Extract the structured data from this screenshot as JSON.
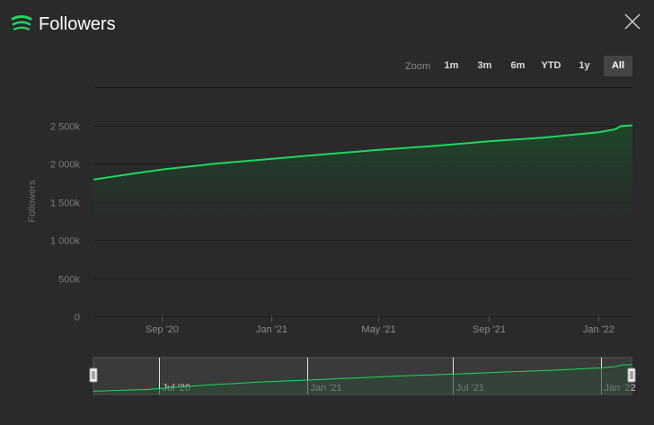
{
  "header": {
    "title": "Followers"
  },
  "zoom": {
    "label": "Zoom",
    "buttons": [
      "1m",
      "3m",
      "6m",
      "YTD",
      "1y",
      "All"
    ],
    "active": "All"
  },
  "colors": {
    "accent": "#1ed760",
    "background": "#2a2a2a",
    "area_top": "#1d4a2a"
  },
  "chart_data": {
    "type": "area",
    "ylabel": "Followers",
    "ylim": [
      0,
      3000000
    ],
    "ytick_values": [
      0,
      500000,
      1000000,
      1500000,
      2000000,
      2500000
    ],
    "ytick_labels": [
      "0",
      "500k",
      "1 000k",
      "1 500k",
      "2 000k",
      "2 500k"
    ],
    "xlim": [
      "2020-06-17",
      "2022-02-08"
    ],
    "xticks": [
      {
        "date": "2020-09-01",
        "label": "Sep '20"
      },
      {
        "date": "2021-01-01",
        "label": "Jan '21"
      },
      {
        "date": "2021-05-01",
        "label": "May '21"
      },
      {
        "date": "2021-09-01",
        "label": "Sep '21"
      },
      {
        "date": "2022-01-01",
        "label": "Jan '22"
      }
    ],
    "grid": true,
    "series": [
      {
        "x": [
          "2020-06-17",
          "2020-08-01",
          "2020-09-01",
          "2020-11-01",
          "2021-01-01",
          "2021-03-01",
          "2021-05-01",
          "2021-07-01",
          "2021-09-01",
          "2021-11-01",
          "2022-01-01",
          "2022-01-20",
          "2022-01-26",
          "2022-02-08"
        ],
        "values": [
          1790000,
          1870000,
          1920000,
          2000000,
          2060000,
          2120000,
          2180000,
          2230000,
          2290000,
          2340000,
          2410000,
          2450000,
          2490000,
          2500000
        ]
      }
    ],
    "navigator": {
      "xlim": [
        "2020-04-10",
        "2022-02-08"
      ],
      "ticks": [
        {
          "date": "2020-07-01",
          "label": "Jul '20"
        },
        {
          "date": "2021-01-01",
          "label": "Jan '21"
        },
        {
          "date": "2021-07-01",
          "label": "Jul '21"
        },
        {
          "date": "2022-01-01",
          "label": "Jan '22"
        }
      ]
    }
  }
}
